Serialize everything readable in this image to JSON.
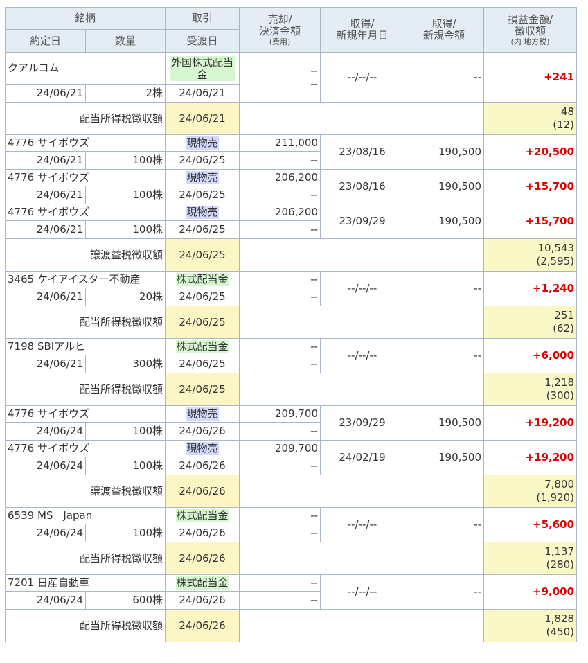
{
  "header": {
    "c1a": "銘柄",
    "c1b": "約定日",
    "c1c": "数量",
    "c2a": "取引",
    "c2b": "受渡日",
    "c3a": "売却/",
    "c3b": "決済金額",
    "c3c": "(費用)",
    "c4a": "取得/",
    "c4b": "新規年月日",
    "c5a": "取得/",
    "c5b": "新規金額",
    "c6a": "損益金額/",
    "c6b": "徴収額",
    "c6c": "(内 地方税)"
  },
  "rows": {
    "r1": {
      "name": "クアルコム",
      "date": "24/06/21",
      "qty": "2株",
      "trade": "外国株式配当金",
      "settle": "24/06/21",
      "sale": "--",
      "fee": "--",
      "acq_date": "--/--/--",
      "acq_amt": "--",
      "pl": "+241"
    },
    "t1": {
      "label": "配当所得税徴収額",
      "date": "24/06/21",
      "amt": "48",
      "local": "(12)"
    },
    "r2": {
      "name": "4776 サイボウズ",
      "date": "24/06/21",
      "qty": "100株",
      "trade": "現物売",
      "settle": "24/06/25",
      "sale": "211,000",
      "fee": "--",
      "acq_date": "23/08/16",
      "acq_amt": "190,500",
      "pl": "+20,500"
    },
    "r3": {
      "name": "4776 サイボウズ",
      "date": "24/06/21",
      "qty": "100株",
      "trade": "現物売",
      "settle": "24/06/25",
      "sale": "206,200",
      "fee": "--",
      "acq_date": "23/08/16",
      "acq_amt": "190,500",
      "pl": "+15,700"
    },
    "r4": {
      "name": "4776 サイボウズ",
      "date": "24/06/21",
      "qty": "100株",
      "trade": "現物売",
      "settle": "24/06/25",
      "sale": "206,200",
      "fee": "--",
      "acq_date": "23/09/29",
      "acq_amt": "190,500",
      "pl": "+15,700"
    },
    "t2": {
      "label": "譲渡益税徴収額",
      "date": "24/06/25",
      "amt": "10,543",
      "local": "(2,595)"
    },
    "r5": {
      "name": "3465 ケイアイスター不動産",
      "date": "24/06/21",
      "qty": "20株",
      "trade": "株式配当金",
      "settle": "24/06/25",
      "sale": "--",
      "fee": "--",
      "acq_date": "--/--/--",
      "acq_amt": "--",
      "pl": "+1,240"
    },
    "t3": {
      "label": "配当所得税徴収額",
      "date": "24/06/25",
      "amt": "251",
      "local": "(62)"
    },
    "r6": {
      "name": "7198 SBIアルヒ",
      "date": "24/06/21",
      "qty": "300株",
      "trade": "株式配当金",
      "settle": "24/06/25",
      "sale": "--",
      "fee": "--",
      "acq_date": "--/--/--",
      "acq_amt": "--",
      "pl": "+6,000"
    },
    "t4": {
      "label": "配当所得税徴収額",
      "date": "24/06/25",
      "amt": "1,218",
      "local": "(300)"
    },
    "r7": {
      "name": "4776 サイボウズ",
      "date": "24/06/24",
      "qty": "100株",
      "trade": "現物売",
      "settle": "24/06/26",
      "sale": "209,700",
      "fee": "--",
      "acq_date": "23/09/29",
      "acq_amt": "190,500",
      "pl": "+19,200"
    },
    "r8": {
      "name": "4776 サイボウズ",
      "date": "24/06/24",
      "qty": "100株",
      "trade": "現物売",
      "settle": "24/06/26",
      "sale": "209,700",
      "fee": "--",
      "acq_date": "24/02/19",
      "acq_amt": "190,500",
      "pl": "+19,200"
    },
    "t5": {
      "label": "譲渡益税徴収額",
      "date": "24/06/26",
      "amt": "7,800",
      "local": "(1,920)"
    },
    "r9": {
      "name": "6539 MS－Japan",
      "date": "24/06/24",
      "qty": "100株",
      "trade": "株式配当金",
      "settle": "24/06/26",
      "sale": "--",
      "fee": "--",
      "acq_date": "--/--/--",
      "acq_amt": "--",
      "pl": "+5,600"
    },
    "t6": {
      "label": "配当所得税徴収額",
      "date": "24/06/26",
      "amt": "1,137",
      "local": "(280)"
    },
    "r10": {
      "name": "7201 日産自動車",
      "date": "24/06/24",
      "qty": "600株",
      "trade": "株式配当金",
      "settle": "24/06/26",
      "sale": "--",
      "fee": "--",
      "acq_date": "--/--/--",
      "acq_amt": "--",
      "pl": "+9,000"
    },
    "t7": {
      "label": "配当所得税徴収額",
      "date": "24/06/26",
      "amt": "1,828",
      "local": "(450)"
    }
  },
  "colors": {
    "profit": "#e00000",
    "header_bg": "#e4edf6",
    "tax_bg": "#fbf8c8",
    "dividend_tag": "#d6f7d0",
    "sell_tag": "#d4d9fb",
    "border": "#a8b6c6"
  }
}
